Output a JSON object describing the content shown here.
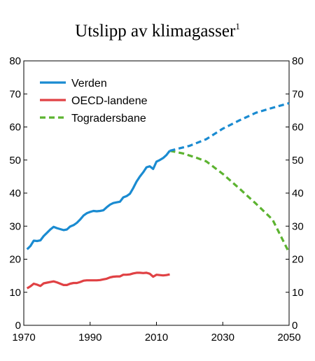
{
  "chart_data": {
    "type": "line",
    "title": "Utslipp av klimagasser",
    "title_superscript": "1",
    "xlabel": "",
    "ylabel": "",
    "xlim": [
      1970,
      2050
    ],
    "ylim": [
      0,
      80
    ],
    "x_ticks": [
      "1970",
      "1990",
      "2010",
      "2030",
      "2050"
    ],
    "y_ticks_left": [
      "0",
      "10",
      "20",
      "30",
      "40",
      "50",
      "60",
      "70",
      "80"
    ],
    "y_ticks_right": [
      "0",
      "10",
      "20",
      "30",
      "40",
      "50",
      "60",
      "70",
      "80"
    ],
    "grid": false,
    "legend_position": "top-left",
    "series": [
      {
        "name": "Verden",
        "color": "#1a8bd1",
        "style": "solid",
        "points": [
          [
            1971,
            23
          ],
          [
            1972,
            24
          ],
          [
            1973,
            25.6
          ],
          [
            1974,
            25.5
          ],
          [
            1975,
            25.7
          ],
          [
            1976,
            27
          ],
          [
            1977,
            28
          ],
          [
            1978,
            29
          ],
          [
            1979,
            29.8
          ],
          [
            1980,
            29.4
          ],
          [
            1981,
            29.1
          ],
          [
            1982,
            28.8
          ],
          [
            1983,
            29
          ],
          [
            1984,
            29.9
          ],
          [
            1985,
            30.3
          ],
          [
            1986,
            31
          ],
          [
            1987,
            32
          ],
          [
            1988,
            33.2
          ],
          [
            1989,
            33.9
          ],
          [
            1990,
            34.3
          ],
          [
            1991,
            34.6
          ],
          [
            1992,
            34.5
          ],
          [
            1993,
            34.6
          ],
          [
            1994,
            34.8
          ],
          [
            1995,
            35.7
          ],
          [
            1996,
            36.5
          ],
          [
            1997,
            37
          ],
          [
            1998,
            37.2
          ],
          [
            1999,
            37.4
          ],
          [
            2000,
            38.7
          ],
          [
            2001,
            39.1
          ],
          [
            2002,
            39.8
          ],
          [
            2003,
            41.5
          ],
          [
            2004,
            43.5
          ],
          [
            2005,
            45
          ],
          [
            2006,
            46.3
          ],
          [
            2007,
            47.8
          ],
          [
            2008,
            48.1
          ],
          [
            2009,
            47.3
          ],
          [
            2010,
            49.5
          ],
          [
            2011,
            50
          ],
          [
            2012,
            50.6
          ],
          [
            2013,
            51.5
          ],
          [
            2014,
            52.8
          ]
        ]
      },
      {
        "name": "",
        "color": "#1a8bd1",
        "style": "dashed",
        "points": [
          [
            2014,
            52.8
          ],
          [
            2020,
            54.3
          ],
          [
            2025,
            56.3
          ],
          [
            2030,
            59.5
          ],
          [
            2035,
            62
          ],
          [
            2040,
            64.3
          ],
          [
            2045,
            65.8
          ],
          [
            2050,
            67.2
          ]
        ]
      },
      {
        "name": "OECD-landene",
        "color": "#e04144",
        "style": "solid",
        "points": [
          [
            1971,
            11.2
          ],
          [
            1972,
            11.8
          ],
          [
            1973,
            12.6
          ],
          [
            1974,
            12.3
          ],
          [
            1975,
            11.9
          ],
          [
            1976,
            12.7
          ],
          [
            1977,
            12.9
          ],
          [
            1978,
            13.1
          ],
          [
            1979,
            13.3
          ],
          [
            1980,
            13
          ],
          [
            1981,
            12.6
          ],
          [
            1982,
            12.2
          ],
          [
            1983,
            12.2
          ],
          [
            1984,
            12.6
          ],
          [
            1985,
            12.8
          ],
          [
            1986,
            12.8
          ],
          [
            1987,
            13.1
          ],
          [
            1988,
            13.5
          ],
          [
            1989,
            13.6
          ],
          [
            1990,
            13.6
          ],
          [
            1991,
            13.6
          ],
          [
            1992,
            13.6
          ],
          [
            1993,
            13.7
          ],
          [
            1994,
            13.9
          ],
          [
            1995,
            14.1
          ],
          [
            1996,
            14.5
          ],
          [
            1997,
            14.7
          ],
          [
            1998,
            14.8
          ],
          [
            1999,
            14.8
          ],
          [
            2000,
            15.3
          ],
          [
            2001,
            15.3
          ],
          [
            2002,
            15.4
          ],
          [
            2003,
            15.7
          ],
          [
            2004,
            15.9
          ],
          [
            2005,
            15.9
          ],
          [
            2006,
            15.8
          ],
          [
            2007,
            15.9
          ],
          [
            2008,
            15.6
          ],
          [
            2009,
            14.7
          ],
          [
            2010,
            15.3
          ],
          [
            2011,
            15.2
          ],
          [
            2012,
            15.1
          ],
          [
            2013,
            15.2
          ],
          [
            2014,
            15.4
          ]
        ]
      },
      {
        "name": "Togradersbane",
        "color": "#5cb330",
        "style": "dashed",
        "points": [
          [
            2014,
            52.8
          ],
          [
            2018,
            52
          ],
          [
            2022,
            50.7
          ],
          [
            2025,
            49.6
          ],
          [
            2030,
            45.8
          ],
          [
            2035,
            41.4
          ],
          [
            2040,
            36.8
          ],
          [
            2045,
            32
          ],
          [
            2050,
            22
          ]
        ]
      }
    ]
  }
}
